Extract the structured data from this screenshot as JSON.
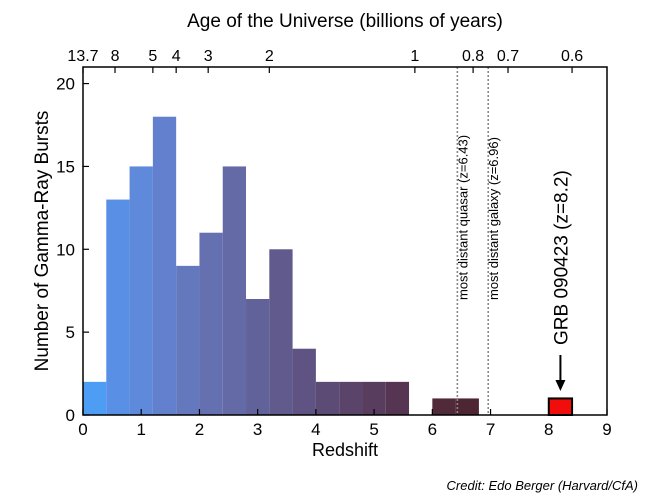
{
  "chart_data": {
    "type": "bar",
    "title": "Age of the Universe  (billions of years)",
    "xlabel": "Redshift",
    "ylabel": "Number of Gamma-Ray Bursts",
    "xlim": [
      0,
      9
    ],
    "ylim": [
      0,
      21
    ],
    "x_ticks": [
      0,
      1,
      2,
      3,
      4,
      5,
      6,
      7,
      8,
      9
    ],
    "y_ticks": [
      0,
      5,
      10,
      15,
      20
    ],
    "top_axis": {
      "label": "Age of the Universe  (billions of years)",
      "ticks": [
        {
          "label": "13.7",
          "z": 0
        },
        {
          "label": "8",
          "z": 0.55
        },
        {
          "label": "5",
          "z": 1.2
        },
        {
          "label": "4",
          "z": 1.6
        },
        {
          "label": "3",
          "z": 2.15
        },
        {
          "label": "2",
          "z": 3.2
        },
        {
          "label": "1",
          "z": 5.7
        },
        {
          "label": "0.8",
          "z": 6.7
        },
        {
          "label": "0.7",
          "z": 7.3
        },
        {
          "label": "0.6",
          "z": 8.4
        }
      ]
    },
    "bin_width": 0.4,
    "bars": [
      {
        "x": 0.0,
        "value": 2,
        "color": "#4d9df5"
      },
      {
        "x": 0.4,
        "value": 13,
        "color": "#5a8fe6"
      },
      {
        "x": 0.8,
        "value": 15,
        "color": "#5f89db"
      },
      {
        "x": 1.2,
        "value": 18,
        "color": "#6280cd"
      },
      {
        "x": 1.6,
        "value": 9,
        "color": "#6478bd"
      },
      {
        "x": 2.0,
        "value": 11,
        "color": "#6570b0"
      },
      {
        "x": 2.4,
        "value": 15,
        "color": "#646aa5"
      },
      {
        "x": 2.8,
        "value": 7,
        "color": "#62629a"
      },
      {
        "x": 3.2,
        "value": 10,
        "color": "#605a8d"
      },
      {
        "x": 3.6,
        "value": 4,
        "color": "#5e5382"
      },
      {
        "x": 4.0,
        "value": 2,
        "color": "#5c4b75"
      },
      {
        "x": 4.4,
        "value": 2,
        "color": "#5a4469"
      },
      {
        "x": 4.8,
        "value": 2,
        "color": "#583d5e"
      },
      {
        "x": 5.2,
        "value": 2,
        "color": "#563553"
      },
      {
        "x": 6.0,
        "value": 1,
        "color": "#502a38"
      },
      {
        "x": 6.4,
        "value": 1,
        "color": "#4e2633"
      }
    ],
    "highlight_bar": {
      "x": 8.0,
      "value": 1,
      "color": "#f20d0d",
      "edge_color": "#000000"
    },
    "reference_lines": [
      {
        "x": 6.43,
        "label": "most distant quasar (z=6.43)"
      },
      {
        "x": 6.96,
        "label": "most distant galaxy (z=6.96)"
      }
    ],
    "annotation": {
      "text": "GRB 090423 (z=8.2)",
      "arrow_x": 8.2
    }
  },
  "credit": "Credit:  Edo Berger (Harvard/CfA)",
  "colors": {
    "axis": "#000000",
    "refline": "#888888"
  }
}
